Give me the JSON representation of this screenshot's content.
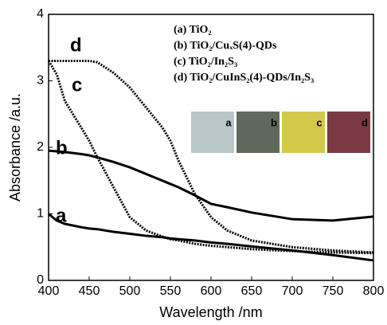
{
  "chart_data": {
    "type": "line",
    "xlabel": "Wavelength /nm",
    "ylabel": "Absorbance /a.u.",
    "x": [
      400,
      410,
      420,
      440,
      450,
      460,
      480,
      500,
      520,
      540,
      550,
      560,
      580,
      600,
      620,
      650,
      700,
      750,
      800
    ],
    "series": [
      {
        "name": "(a) TiO₂",
        "color": "#000000",
        "values": [
          1.0,
          0.9,
          0.85,
          0.8,
          0.78,
          0.77,
          0.73,
          0.7,
          0.67,
          0.65,
          0.63,
          0.62,
          0.6,
          0.57,
          0.55,
          0.51,
          0.45,
          0.38,
          0.3
        ]
      },
      {
        "name": "(b) TiO₂/CuₓS(4)-QDs",
        "color": "#000000",
        "values": [
          1.95,
          1.94,
          1.93,
          1.9,
          1.88,
          1.85,
          1.78,
          1.7,
          1.6,
          1.5,
          1.45,
          1.4,
          1.28,
          1.15,
          1.1,
          1.02,
          0.92,
          0.9,
          0.96
        ]
      },
      {
        "name": "(c) TiO₂/In₂S₃",
        "color": "#000000",
        "values": [
          3.3,
          3.1,
          2.7,
          2.3,
          2.1,
          1.85,
          1.4,
          0.95,
          0.75,
          0.66,
          0.62,
          0.6,
          0.55,
          0.52,
          0.5,
          0.47,
          0.44,
          0.42,
          0.41
        ]
      },
      {
        "name": "(d) TiO₂/CuInS₂(4)-QDs/In₂S₃",
        "color": "#000000",
        "values": [
          3.3,
          3.3,
          3.3,
          3.3,
          3.3,
          3.28,
          3.12,
          2.9,
          2.6,
          2.3,
          2.1,
          1.8,
          1.3,
          0.95,
          0.75,
          0.6,
          0.5,
          0.45,
          0.42
        ]
      }
    ],
    "annotations": [
      "a",
      "b",
      "c",
      "d"
    ],
    "xlim": [
      400,
      800
    ],
    "xticks": [
      400,
      450,
      500,
      550,
      600,
      650,
      700,
      750,
      800
    ],
    "ylim": [
      0,
      4
    ],
    "yticks": [
      0,
      1,
      2,
      3,
      4
    ],
    "legend": "upper right"
  }
}
